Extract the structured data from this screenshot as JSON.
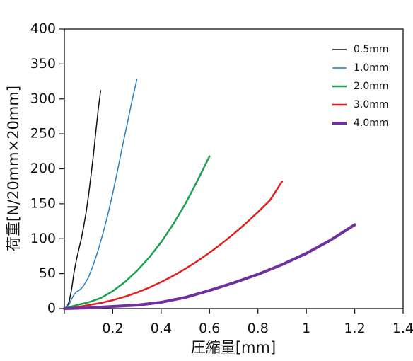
{
  "chart_data": {
    "type": "line",
    "title": "",
    "xlabel": "圧縮量[mm]",
    "ylabel": "荷重[N/20mm×20mm]",
    "xlim": [
      0,
      1.4
    ],
    "ylim": [
      0,
      400
    ],
    "xticks": [
      0,
      0.2,
      0.4,
      0.6,
      0.8,
      1.0,
      1.2,
      1.4
    ],
    "xtick_labels": [
      "",
      "0.2",
      "0.4",
      "0.6",
      "0.8",
      "1",
      "1.2",
      "1.4"
    ],
    "yticks": [
      0,
      50,
      100,
      150,
      200,
      250,
      300,
      350,
      400
    ],
    "ytick_labels": [
      "0",
      "50",
      "100",
      "150",
      "200",
      "250",
      "300",
      "350",
      "400"
    ],
    "grid": false,
    "legend_position": "top-right",
    "series": [
      {
        "name": "0.5mm",
        "color": "#111111",
        "width": 1.5,
        "points": [
          [
            0,
            0
          ],
          [
            0.01,
            2
          ],
          [
            0.02,
            10
          ],
          [
            0.03,
            28
          ],
          [
            0.04,
            52
          ],
          [
            0.05,
            70
          ],
          [
            0.06,
            85
          ],
          [
            0.07,
            100
          ],
          [
            0.08,
            118
          ],
          [
            0.09,
            138
          ],
          [
            0.1,
            162
          ],
          [
            0.11,
            190
          ],
          [
            0.12,
            220
          ],
          [
            0.13,
            253
          ],
          [
            0.14,
            285
          ],
          [
            0.15,
            312
          ]
        ]
      },
      {
        "name": "1.0mm",
        "color": "#2a7fc0",
        "width": 1.5,
        "points": [
          [
            0,
            0
          ],
          [
            0.02,
            6
          ],
          [
            0.03,
            14
          ],
          [
            0.04,
            20
          ],
          [
            0.05,
            24
          ],
          [
            0.06,
            26
          ],
          [
            0.07,
            29
          ],
          [
            0.08,
            33
          ],
          [
            0.1,
            45
          ],
          [
            0.12,
            63
          ],
          [
            0.14,
            84
          ],
          [
            0.16,
            108
          ],
          [
            0.18,
            135
          ],
          [
            0.2,
            165
          ],
          [
            0.22,
            198
          ],
          [
            0.24,
            232
          ],
          [
            0.26,
            265
          ],
          [
            0.28,
            298
          ],
          [
            0.3,
            328
          ]
        ]
      },
      {
        "name": "2.0mm",
        "color": "#1aa050",
        "width": 2.5,
        "points": [
          [
            0,
            0
          ],
          [
            0.05,
            5
          ],
          [
            0.1,
            9
          ],
          [
            0.15,
            15
          ],
          [
            0.2,
            25
          ],
          [
            0.25,
            38
          ],
          [
            0.3,
            54
          ],
          [
            0.35,
            73
          ],
          [
            0.4,
            95
          ],
          [
            0.45,
            121
          ],
          [
            0.5,
            150
          ],
          [
            0.55,
            183
          ],
          [
            0.6,
            218
          ]
        ]
      },
      {
        "name": "3.0mm",
        "color": "#e02020",
        "width": 2.5,
        "points": [
          [
            0,
            0
          ],
          [
            0.05,
            2
          ],
          [
            0.1,
            5
          ],
          [
            0.15,
            8
          ],
          [
            0.2,
            12
          ],
          [
            0.25,
            17
          ],
          [
            0.3,
            23
          ],
          [
            0.35,
            30
          ],
          [
            0.4,
            38
          ],
          [
            0.45,
            47
          ],
          [
            0.5,
            57
          ],
          [
            0.55,
            68
          ],
          [
            0.6,
            80
          ],
          [
            0.65,
            93
          ],
          [
            0.7,
            107
          ],
          [
            0.75,
            122
          ],
          [
            0.8,
            138
          ],
          [
            0.85,
            155
          ],
          [
            0.9,
            182
          ]
        ]
      },
      {
        "name": "4.0mm",
        "color": "#7030a0",
        "width": 4,
        "points": [
          [
            0,
            0
          ],
          [
            0.1,
            1
          ],
          [
            0.2,
            3
          ],
          [
            0.3,
            5
          ],
          [
            0.4,
            9
          ],
          [
            0.5,
            16
          ],
          [
            0.6,
            26
          ],
          [
            0.7,
            37
          ],
          [
            0.8,
            49
          ],
          [
            0.9,
            63
          ],
          [
            1.0,
            79
          ],
          [
            1.1,
            98
          ],
          [
            1.2,
            120
          ]
        ]
      }
    ]
  }
}
